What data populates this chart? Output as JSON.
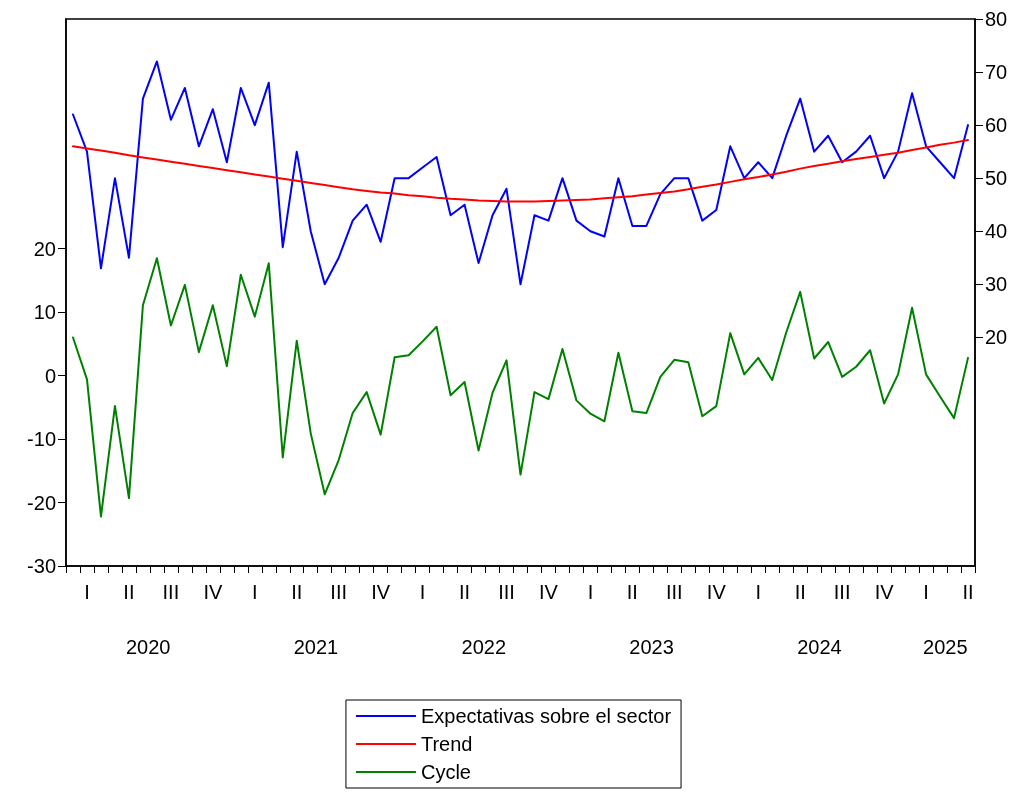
{
  "chart_data": {
    "type": "line",
    "categories": [
      null,
      "I",
      null,
      null,
      "II",
      null,
      null,
      "III",
      null,
      null,
      "IV",
      null,
      null,
      "I",
      null,
      null,
      "II",
      null,
      null,
      "III",
      null,
      null,
      "IV",
      null,
      null,
      "I",
      null,
      null,
      "II",
      null,
      null,
      "III",
      null,
      null,
      "IV",
      null,
      null,
      "I",
      null,
      null,
      "II",
      null,
      null,
      "III",
      null,
      null,
      "IV",
      null,
      null,
      "I",
      null,
      null,
      "II",
      null,
      null,
      "III",
      null,
      null,
      "IV",
      null,
      null,
      "I",
      null,
      null,
      "II"
    ],
    "series": [
      {
        "name": "Expectativas sobre el sector",
        "color": "#0000ff",
        "axis": "y2",
        "values": [
          62,
          55,
          33,
          50,
          35,
          65,
          72,
          61,
          67,
          56,
          63,
          53,
          67,
          60,
          68,
          37,
          55,
          40,
          30,
          35,
          42,
          45,
          38,
          50,
          50,
          52,
          54,
          43,
          45,
          34,
          43,
          48,
          30,
          43,
          42,
          50,
          42,
          40,
          39,
          50,
          41,
          41,
          47,
          50,
          50,
          42,
          44,
          56,
          50,
          53,
          50,
          58,
          65,
          55,
          58,
          53,
          55,
          58,
          50,
          55,
          66,
          56,
          53,
          50,
          60
        ]
      },
      {
        "name": "Trend",
        "color": "#ff0000",
        "axis": "y2",
        "values": [
          56.0,
          55.6,
          55.2,
          54.8,
          54.3,
          53.9,
          53.5,
          53.1,
          52.7,
          52.3,
          51.9,
          51.5,
          51.1,
          50.7,
          50.3,
          49.9,
          49.5,
          49.1,
          48.7,
          48.3,
          47.9,
          47.6,
          47.3,
          47.1,
          46.8,
          46.6,
          46.3,
          46.1,
          46.0,
          45.8,
          45.7,
          45.6,
          45.6,
          45.6,
          45.7,
          45.8,
          45.9,
          46.0,
          46.2,
          46.4,
          46.6,
          46.9,
          47.2,
          47.5,
          47.9,
          48.4,
          48.8,
          49.3,
          49.8,
          50.2,
          50.7,
          51.2,
          51.8,
          52.3,
          52.7,
          53.2,
          53.6,
          54.0,
          54.4,
          54.8,
          55.3,
          55.8,
          56.3,
          56.7,
          57.2
        ]
      },
      {
        "name": "Cycle",
        "color": "#008000",
        "axis": "y",
        "values": [
          6.0,
          -0.6,
          -22.2,
          -4.8,
          -19.3,
          11.1,
          18.5,
          7.9,
          14.3,
          3.7,
          11.1,
          1.5,
          15.9,
          9.3,
          17.7,
          -12.9,
          5.5,
          -9.1,
          -18.7,
          -13.3,
          -5.9,
          -2.6,
          -9.3,
          2.9,
          3.2,
          5.4,
          7.7,
          -3.1,
          -1.0,
          -11.8,
          -2.7,
          2.4,
          -15.6,
          -2.6,
          -3.7,
          4.2,
          -3.9,
          -6.0,
          -7.2,
          3.6,
          -5.6,
          -5.9,
          -0.2,
          2.5,
          2.1,
          -6.4,
          -4.8,
          6.7,
          0.2,
          2.8,
          -0.7,
          6.8,
          13.2,
          2.7,
          5.3,
          -0.2,
          1.4,
          4.0,
          -4.4,
          0.2,
          10.7,
          0.2,
          -3.3,
          -6.7,
          2.8
        ]
      }
    ],
    "annotations": [
      "2020",
      "2021",
      "2022",
      "2023",
      "2024",
      "2025"
    ],
    "ylim": [
      -30,
      56.2
    ],
    "yticks": [
      -30,
      -20,
      -10,
      0,
      10,
      20
    ],
    "y2lim": [
      -23.1,
      80
    ],
    "y2ticks": [
      20,
      30,
      40,
      50,
      60,
      70,
      80
    ],
    "grid": false,
    "legend": "bottom",
    "marker": "none",
    "line_style": "solid"
  }
}
